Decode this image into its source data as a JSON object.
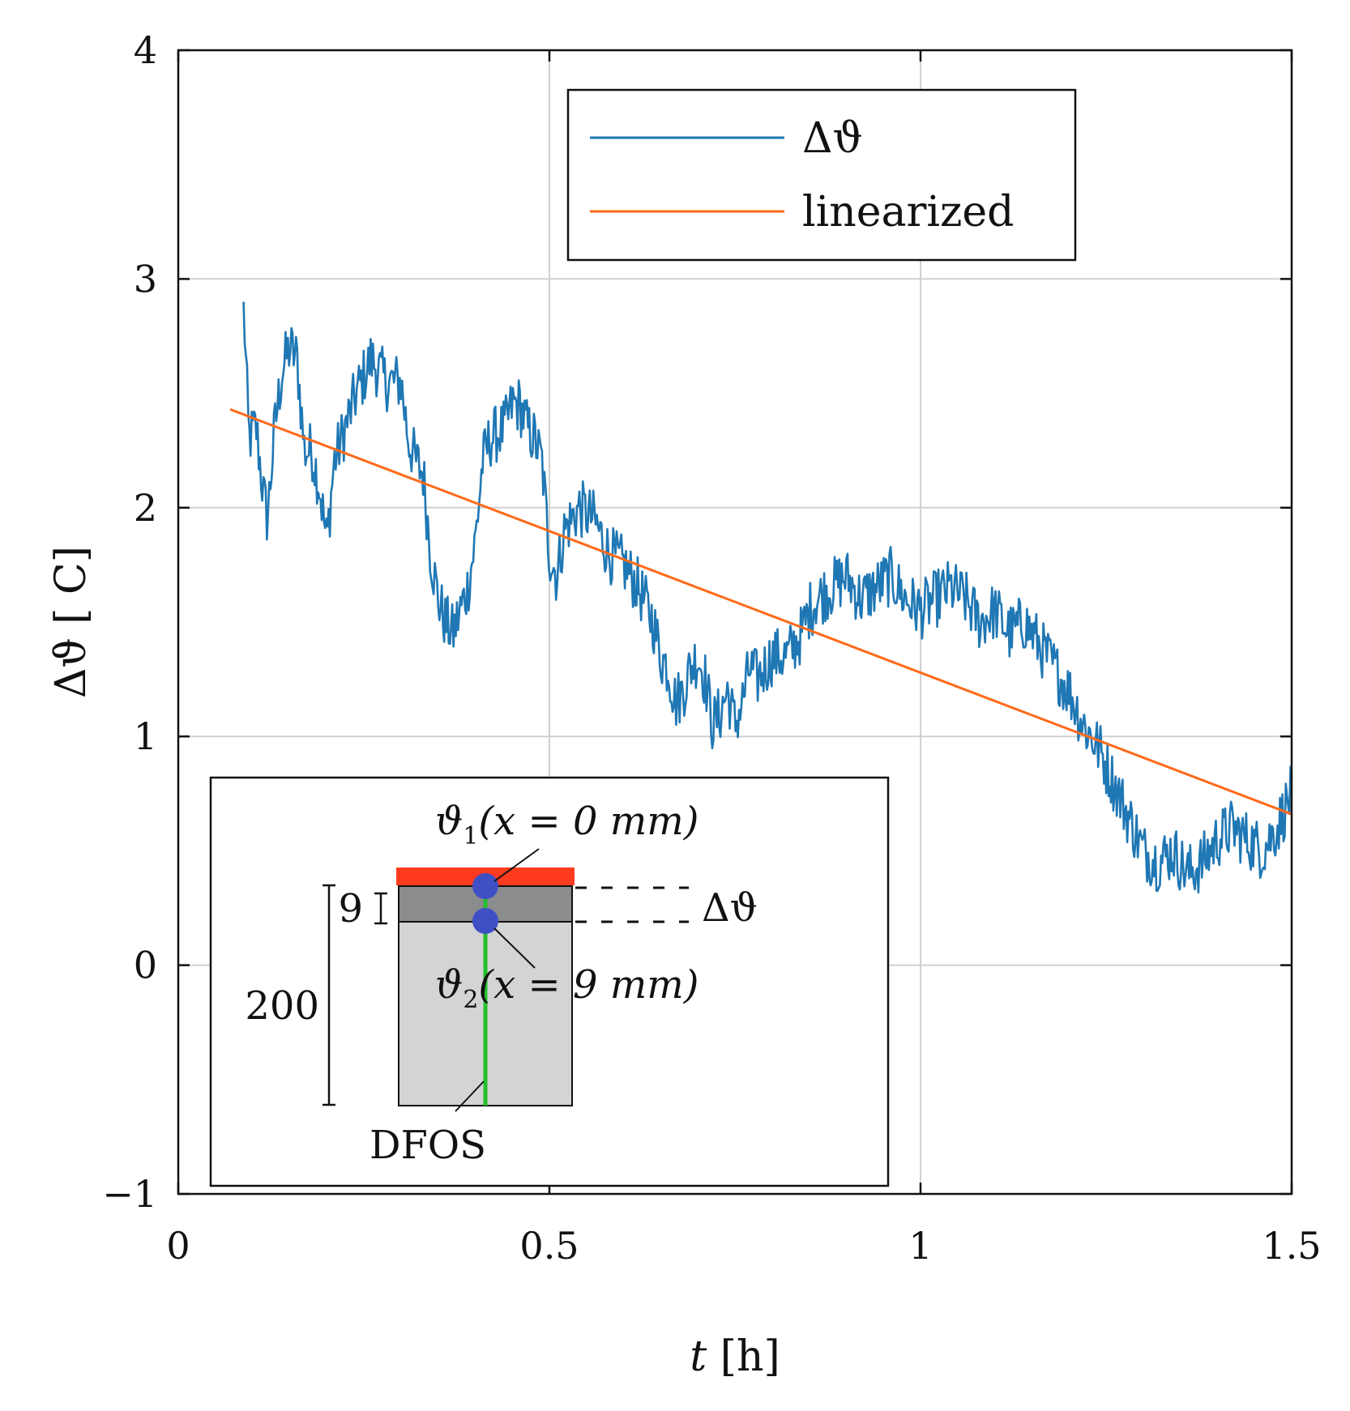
{
  "chart_data": {
    "type": "line",
    "title": "",
    "xlabel": "t [h]",
    "xlabel_var": "t",
    "xlabel_unit": "[h]",
    "ylabel": "Δϑ [ C]",
    "xlim": [
      0,
      1.5
    ],
    "ylim": [
      -1,
      4
    ],
    "xticks": [
      0,
      0.5,
      1,
      1.5
    ],
    "xtick_labels": [
      "0",
      "0.5",
      "1",
      "1.5"
    ],
    "yticks": [
      -1,
      0,
      1,
      2,
      3,
      4
    ],
    "ytick_labels": [
      "−1",
      "0",
      "1",
      "2",
      "3",
      "4"
    ],
    "grid": true,
    "legend_position": "top-right",
    "series": [
      {
        "name": "Δϑ",
        "color": "#1f77b4",
        "anchors": [
          [
            0.088,
            2.9
          ],
          [
            0.095,
            2.3
          ],
          [
            0.105,
            2.35
          ],
          [
            0.115,
            2.05
          ],
          [
            0.12,
            1.95
          ],
          [
            0.13,
            2.35
          ],
          [
            0.14,
            2.6
          ],
          [
            0.15,
            2.7
          ],
          [
            0.16,
            2.65
          ],
          [
            0.17,
            2.25
          ],
          [
            0.18,
            2.25
          ],
          [
            0.19,
            2.1
          ],
          [
            0.2,
            1.85
          ],
          [
            0.21,
            2.2
          ],
          [
            0.22,
            2.3
          ],
          [
            0.24,
            2.5
          ],
          [
            0.26,
            2.65
          ],
          [
            0.28,
            2.55
          ],
          [
            0.3,
            2.55
          ],
          [
            0.31,
            2.3
          ],
          [
            0.32,
            2.2
          ],
          [
            0.33,
            2.15
          ],
          [
            0.34,
            1.8
          ],
          [
            0.35,
            1.6
          ],
          [
            0.36,
            1.5
          ],
          [
            0.37,
            1.45
          ],
          [
            0.38,
            1.55
          ],
          [
            0.39,
            1.65
          ],
          [
            0.4,
            1.85
          ],
          [
            0.41,
            2.2
          ],
          [
            0.42,
            2.3
          ],
          [
            0.44,
            2.35
          ],
          [
            0.45,
            2.45
          ],
          [
            0.46,
            2.45
          ],
          [
            0.47,
            2.35
          ],
          [
            0.48,
            2.3
          ],
          [
            0.49,
            2.2
          ],
          [
            0.5,
            1.8
          ],
          [
            0.51,
            1.7
          ],
          [
            0.52,
            1.9
          ],
          [
            0.54,
            2.0
          ],
          [
            0.56,
            1.95
          ],
          [
            0.58,
            1.8
          ],
          [
            0.6,
            1.75
          ],
          [
            0.62,
            1.65
          ],
          [
            0.64,
            1.5
          ],
          [
            0.65,
            1.35
          ],
          [
            0.66,
            1.3
          ],
          [
            0.67,
            1.15
          ],
          [
            0.68,
            1.2
          ],
          [
            0.69,
            1.3
          ],
          [
            0.7,
            1.35
          ],
          [
            0.71,
            1.25
          ],
          [
            0.72,
            1.05
          ],
          [
            0.73,
            1.1
          ],
          [
            0.74,
            1.2
          ],
          [
            0.75,
            1.05
          ],
          [
            0.76,
            1.15
          ],
          [
            0.77,
            1.3
          ],
          [
            0.78,
            1.25
          ],
          [
            0.79,
            1.3
          ],
          [
            0.8,
            1.35
          ],
          [
            0.82,
            1.35
          ],
          [
            0.84,
            1.45
          ],
          [
            0.85,
            1.55
          ],
          [
            0.86,
            1.6
          ],
          [
            0.88,
            1.65
          ],
          [
            0.9,
            1.7
          ],
          [
            0.92,
            1.6
          ],
          [
            0.94,
            1.65
          ],
          [
            0.96,
            1.7
          ],
          [
            0.98,
            1.6
          ],
          [
            1.0,
            1.55
          ],
          [
            1.02,
            1.6
          ],
          [
            1.04,
            1.65
          ],
          [
            1.06,
            1.6
          ],
          [
            1.08,
            1.5
          ],
          [
            1.1,
            1.55
          ],
          [
            1.12,
            1.45
          ],
          [
            1.14,
            1.5
          ],
          [
            1.16,
            1.4
          ],
          [
            1.18,
            1.3
          ],
          [
            1.2,
            1.2
          ],
          [
            1.22,
            1.05
          ],
          [
            1.24,
            0.95
          ],
          [
            1.26,
            0.8
          ],
          [
            1.28,
            0.65
          ],
          [
            1.3,
            0.5
          ],
          [
            1.32,
            0.45
          ],
          [
            1.34,
            0.5
          ],
          [
            1.36,
            0.4
          ],
          [
            1.38,
            0.45
          ],
          [
            1.4,
            0.55
          ],
          [
            1.42,
            0.6
          ],
          [
            1.44,
            0.55
          ],
          [
            1.46,
            0.5
          ],
          [
            1.48,
            0.6
          ],
          [
            1.5,
            0.75
          ]
        ],
        "noise_amplitude": 0.13,
        "samples": 900
      },
      {
        "name": "linearized",
        "color": "#ff6a1a",
        "x": [
          0.07,
          1.5
        ],
        "y": [
          2.43,
          0.66
        ]
      }
    ],
    "inset": {
      "label_top": "ϑ",
      "label_top_sub": "1",
      "label_top_expr": "(x = 0 mm)",
      "label_bottom": "ϑ",
      "label_bottom_sub": "2",
      "label_bottom_expr": "(x = 9 mm)",
      "delta_label": "Δϑ",
      "dim_small": "9",
      "dim_large": "200",
      "sensor_label": "DFOS",
      "colors": {
        "heating_layer": "#ff3b1f",
        "top_layer": "#8a8c8d",
        "body": "#d3d4d4",
        "fiber": "#22c02c",
        "sensor_point": "#3f4fc4"
      }
    }
  }
}
